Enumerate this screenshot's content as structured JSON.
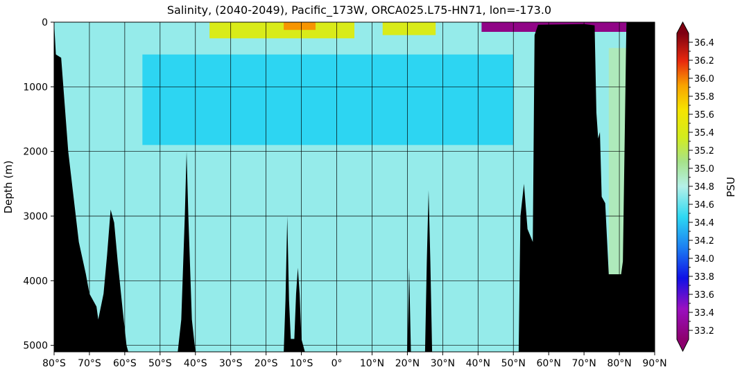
{
  "chart_data": {
    "type": "heatmap",
    "title": "Salinity, (2040-2049), Pacific_173W, ORCA025.L75-HN71, lon=-173.0",
    "ylabel": "Depth (m)",
    "xlabel": "",
    "colorbar_label": "PSU",
    "x_range": [
      -80,
      90
    ],
    "y_range": [
      5100,
      0
    ],
    "x_ticks": [
      -80,
      -70,
      -60,
      -50,
      -40,
      -30,
      -20,
      -10,
      0,
      10,
      20,
      30,
      40,
      50,
      60,
      70,
      80,
      90
    ],
    "x_tick_labels": [
      "80°S",
      "70°S",
      "60°S",
      "50°S",
      "40°S",
      "30°S",
      "20°S",
      "10°S",
      "0°",
      "10°N",
      "20°N",
      "30°N",
      "40°N",
      "50°N",
      "60°N",
      "70°N",
      "80°N",
      "90°N"
    ],
    "y_ticks": [
      0,
      1000,
      2000,
      3000,
      4000,
      5000
    ],
    "y_tick_labels": [
      "0",
      "1000",
      "2000",
      "3000",
      "4000",
      "5000"
    ],
    "color_range": [
      33.1,
      36.5
    ],
    "colorbar_ticks": [
      33.2,
      33.4,
      33.6,
      33.8,
      34.0,
      34.2,
      34.4,
      34.6,
      34.8,
      35.0,
      35.2,
      35.4,
      35.6,
      35.8,
      36.0,
      36.2,
      36.4
    ],
    "colorbar_tick_labels": [
      "33.2",
      "33.4",
      "33.6",
      "33.8",
      "34.0",
      "34.2",
      "34.4",
      "34.6",
      "34.8",
      "35.0",
      "35.2",
      "35.4",
      "35.6",
      "35.8",
      "36.0",
      "36.2",
      "36.4"
    ],
    "grid": true,
    "surface_features": [
      {
        "lat_range": [
          -36,
          5
        ],
        "depth_max": 250,
        "salinity": 35.4
      },
      {
        "lat_range": [
          -15,
          -6
        ],
        "depth_max": 120,
        "salinity": 35.95
      },
      {
        "lat_range": [
          13,
          28
        ],
        "depth_max": 200,
        "salinity": 35.4
      },
      {
        "lat_range": [
          41,
          82
        ],
        "depth_max": 150,
        "salinity": 33.2
      }
    ],
    "intermediate_water": {
      "lat_range": [
        -55,
        50
      ],
      "depth_range": [
        500,
        1900
      ],
      "salinity": 34.45
    },
    "deep_water_salinity": 34.72,
    "arctic_deep_water_salinity": 34.93,
    "bathymetry": [
      [
        -80,
        0
      ],
      [
        -79.5,
        500
      ],
      [
        -78,
        550
      ],
      [
        -76,
        2000
      ],
      [
        -73,
        3400
      ],
      [
        -71,
        3900
      ],
      [
        -70,
        4200
      ],
      [
        -68,
        4400
      ],
      [
        -67.5,
        4600
      ],
      [
        -66,
        4200
      ],
      [
        -65,
        3600
      ],
      [
        -64,
        2900
      ],
      [
        -63,
        3100
      ],
      [
        -62,
        3700
      ],
      [
        -60.5,
        4500
      ],
      [
        -59.5,
        5000
      ],
      [
        -59,
        5100
      ],
      [
        -45,
        5100
      ],
      [
        -44,
        4600
      ],
      [
        -43,
        3000
      ],
      [
        -42.5,
        2000
      ],
      [
        -42,
        3000
      ],
      [
        -41,
        4600
      ],
      [
        -40,
        5100
      ],
      [
        -15,
        5100
      ],
      [
        -14.5,
        4300
      ],
      [
        -14,
        3000
      ],
      [
        -13.5,
        4300
      ],
      [
        -13,
        4900
      ],
      [
        -12,
        4900
      ],
      [
        -11.5,
        4200
      ],
      [
        -11,
        3800
      ],
      [
        -10.5,
        4200
      ],
      [
        -10,
        4900
      ],
      [
        -9,
        5100
      ],
      [
        20,
        5100
      ],
      [
        20.5,
        3800
      ],
      [
        21,
        5100
      ],
      [
        25,
        5100
      ],
      [
        25.5,
        3700
      ],
      [
        26,
        2600
      ],
      [
        26.5,
        3700
      ],
      [
        27,
        5100
      ],
      [
        51.5,
        5100
      ],
      [
        52,
        3000
      ],
      [
        53,
        2500
      ],
      [
        54,
        3200
      ],
      [
        55.5,
        3400
      ],
      [
        56,
        200
      ],
      [
        57,
        40
      ],
      [
        70,
        30
      ],
      [
        73,
        50
      ],
      [
        73.5,
        1400
      ],
      [
        74,
        1800
      ],
      [
        74.5,
        1700
      ],
      [
        75,
        2700
      ],
      [
        76,
        2800
      ],
      [
        77,
        3900
      ],
      [
        80.5,
        3900
      ],
      [
        81,
        3700
      ],
      [
        82,
        0
      ],
      [
        90,
        0
      ]
    ]
  }
}
